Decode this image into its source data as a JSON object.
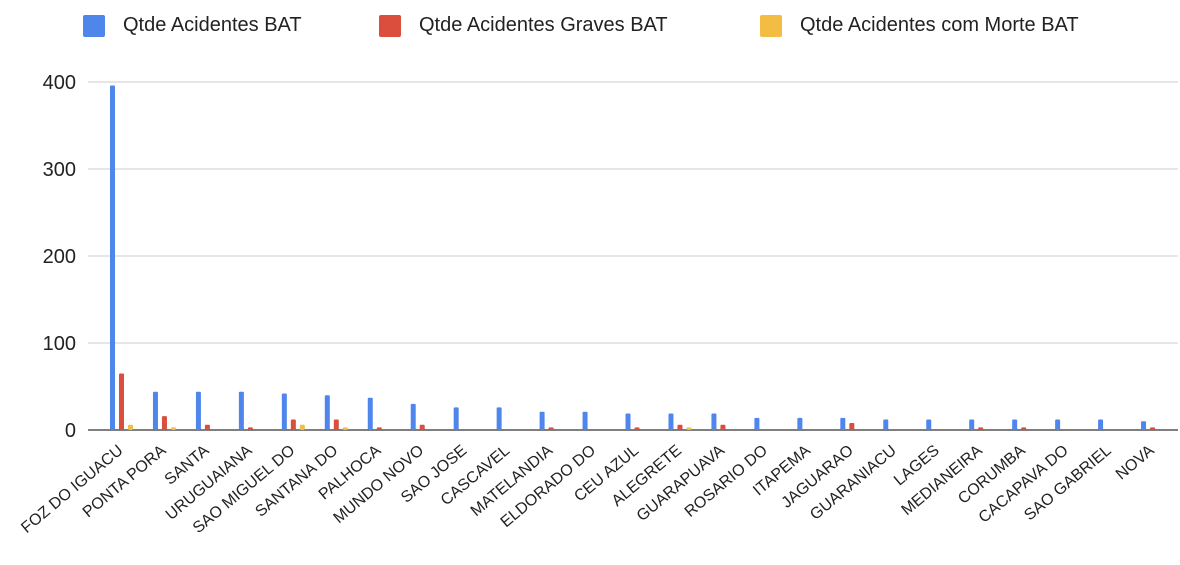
{
  "chart_data": {
    "type": "bar",
    "title": "",
    "xlabel": "",
    "ylabel": "",
    "ylim": [
      0,
      400
    ],
    "yticks": [
      0,
      100,
      200,
      300,
      400
    ],
    "grid": true,
    "legend_position": "top",
    "categories": [
      "FOZ DO IGUACU",
      "PONTA PORA",
      "SANTA",
      "URUGUAIANA",
      "SAO MIGUEL DO",
      "SANTANA DO",
      "PALHOCA",
      "MUNDO NOVO",
      "SAO JOSE",
      "CASCAVEL",
      "MATELANDIA",
      "ELDORADO DO",
      "CEU AZUL",
      "ALEGRETE",
      "GUARAPUAVA",
      "ROSARIO DO",
      "ITAPEMA",
      "JAGUARAO",
      "GUARANIACU",
      "LAGES",
      "MEDIANEIRA",
      "CORUMBA",
      "CACAPAVA DO",
      "SAO GABRIEL",
      "NOVA"
    ],
    "series": [
      {
        "name": "Qtde Acidentes BAT",
        "color": "#4f86ec",
        "values": [
          396,
          44,
          44,
          44,
          42,
          40,
          37,
          30,
          26,
          26,
          21,
          21,
          19,
          19,
          19,
          14,
          14,
          14,
          12,
          12,
          12,
          12,
          12,
          12,
          10
        ]
      },
      {
        "name": "Qtde Acidentes Graves BAT",
        "color": "#db4e3d",
        "values": [
          65,
          16,
          6,
          3,
          12,
          12,
          3,
          6,
          0,
          0,
          3,
          0,
          3,
          6,
          6,
          0,
          0,
          8,
          0,
          0,
          3,
          3,
          0,
          0,
          3
        ]
      },
      {
        "name": "Qtde Acidentes com Morte BAT",
        "color": "#f2bd42",
        "values": [
          6,
          3,
          0,
          0,
          6,
          3,
          0,
          0,
          0,
          0,
          0,
          0,
          0,
          3,
          0,
          0,
          0,
          0,
          0,
          0,
          0,
          0,
          0,
          0,
          0
        ]
      }
    ]
  }
}
